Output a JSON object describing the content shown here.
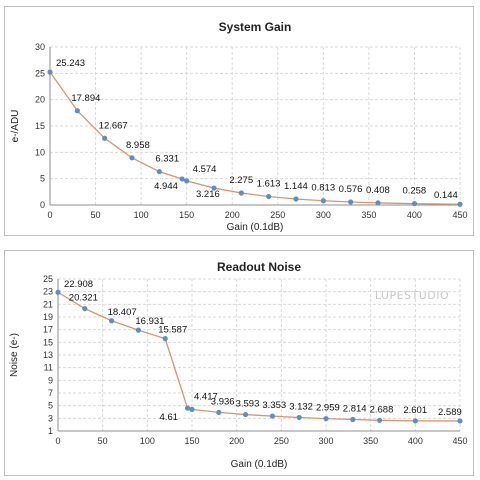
{
  "chart_data": [
    {
      "type": "line",
      "title": "System Gain",
      "xlabel": "Gain (0.1dB)",
      "ylabel": "e-/ADU",
      "xlim": [
        0,
        450
      ],
      "ylim": [
        0,
        30
      ],
      "xticks": [
        0,
        50,
        100,
        150,
        200,
        250,
        300,
        350,
        400,
        450
      ],
      "yticks": [
        0,
        5,
        10,
        15,
        20,
        25,
        30
      ],
      "grid": true,
      "line_color": "#d9956a",
      "marker_color": "#5b8fc9",
      "series": [
        {
          "x": [
            0,
            30,
            60,
            90,
            120,
            145,
            150,
            180,
            210,
            240,
            270,
            300,
            330,
            360,
            400,
            450
          ],
          "y": [
            25.243,
            17.894,
            12.667,
            8.958,
            6.331,
            4.944,
            4.574,
            3.216,
            2.275,
            1.613,
            1.144,
            0.813,
            0.576,
            0.408,
            0.258,
            0.144
          ],
          "labels": [
            "25.243",
            "17.894",
            "12.667",
            "8.958",
            "6.331",
            "4.944",
            "4.574",
            "3.216",
            "2.275",
            "1.613",
            "1.144",
            "0.813",
            "0.576",
            "0.408",
            "0.258",
            "0.144"
          ]
        }
      ]
    },
    {
      "type": "line",
      "title": "Readout Noise",
      "xlabel": "Gain (0.1dB)",
      "ylabel": "Noise (e-)",
      "xlim": [
        0,
        450
      ],
      "ylim": [
        1,
        25
      ],
      "xticks": [
        0,
        50,
        100,
        150,
        200,
        250,
        300,
        350,
        400,
        450
      ],
      "yticks": [
        1,
        3,
        5,
        7,
        9,
        11,
        13,
        15,
        17,
        19,
        21,
        23,
        25
      ],
      "grid": true,
      "line_color": "#d9956a",
      "marker_color": "#5b8fc9",
      "watermark": "LUPESTUDIO",
      "series": [
        {
          "x": [
            0,
            30,
            60,
            90,
            120,
            145,
            150,
            180,
            210,
            240,
            270,
            300,
            330,
            360,
            400,
            450
          ],
          "y": [
            22.908,
            20.321,
            18.407,
            16.931,
            15.587,
            4.61,
            4.417,
            3.936,
            3.593,
            3.353,
            3.132,
            2.959,
            2.814,
            2.688,
            2.601,
            2.589
          ],
          "labels": [
            "22.908",
            "20.321",
            "18.407",
            "16.931",
            "15.587",
            "4.61",
            "4.417",
            "3.936",
            "3.593",
            "3.353",
            "3.132",
            "2.959",
            "2.814",
            "2.688",
            "2.601",
            "2.589"
          ]
        }
      ]
    }
  ]
}
